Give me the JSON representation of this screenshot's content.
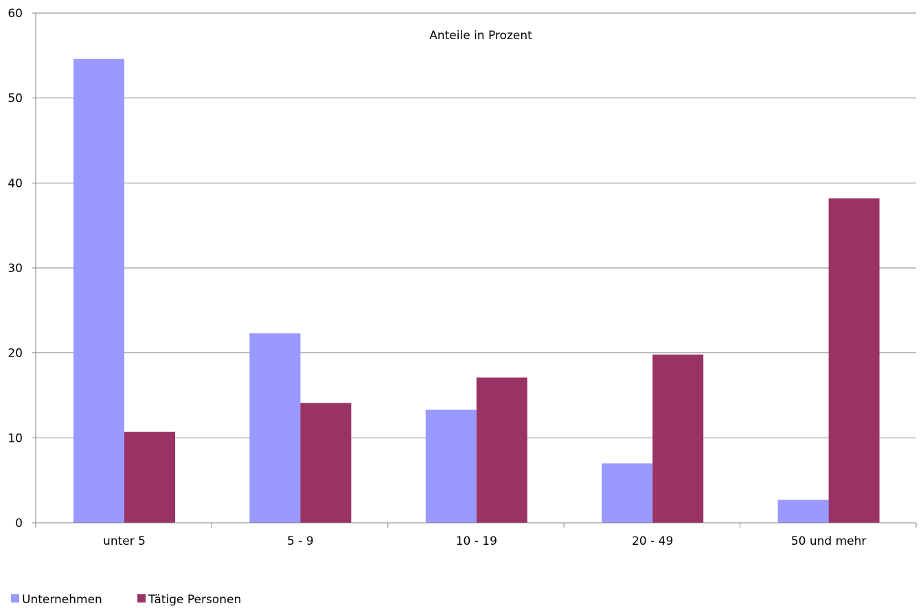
{
  "chart_data": {
    "type": "bar",
    "title": "Anteile in Prozent",
    "categories": [
      "unter 5",
      "5 - 9",
      "10 - 19",
      "20 - 49",
      "50 und mehr"
    ],
    "series": [
      {
        "name": "Unternehmen",
        "color": "#9999ff",
        "values": [
          54.6,
          22.3,
          13.3,
          7.0,
          2.7
        ]
      },
      {
        "name": "Tätige Personen",
        "color": "#993366",
        "values": [
          10.7,
          14.1,
          17.1,
          19.8,
          38.2
        ]
      }
    ],
    "ylim": [
      0,
      60
    ],
    "yticks": [
      0,
      10,
      20,
      30,
      40,
      50,
      60
    ],
    "grid": true,
    "legend": "bottom-left"
  }
}
